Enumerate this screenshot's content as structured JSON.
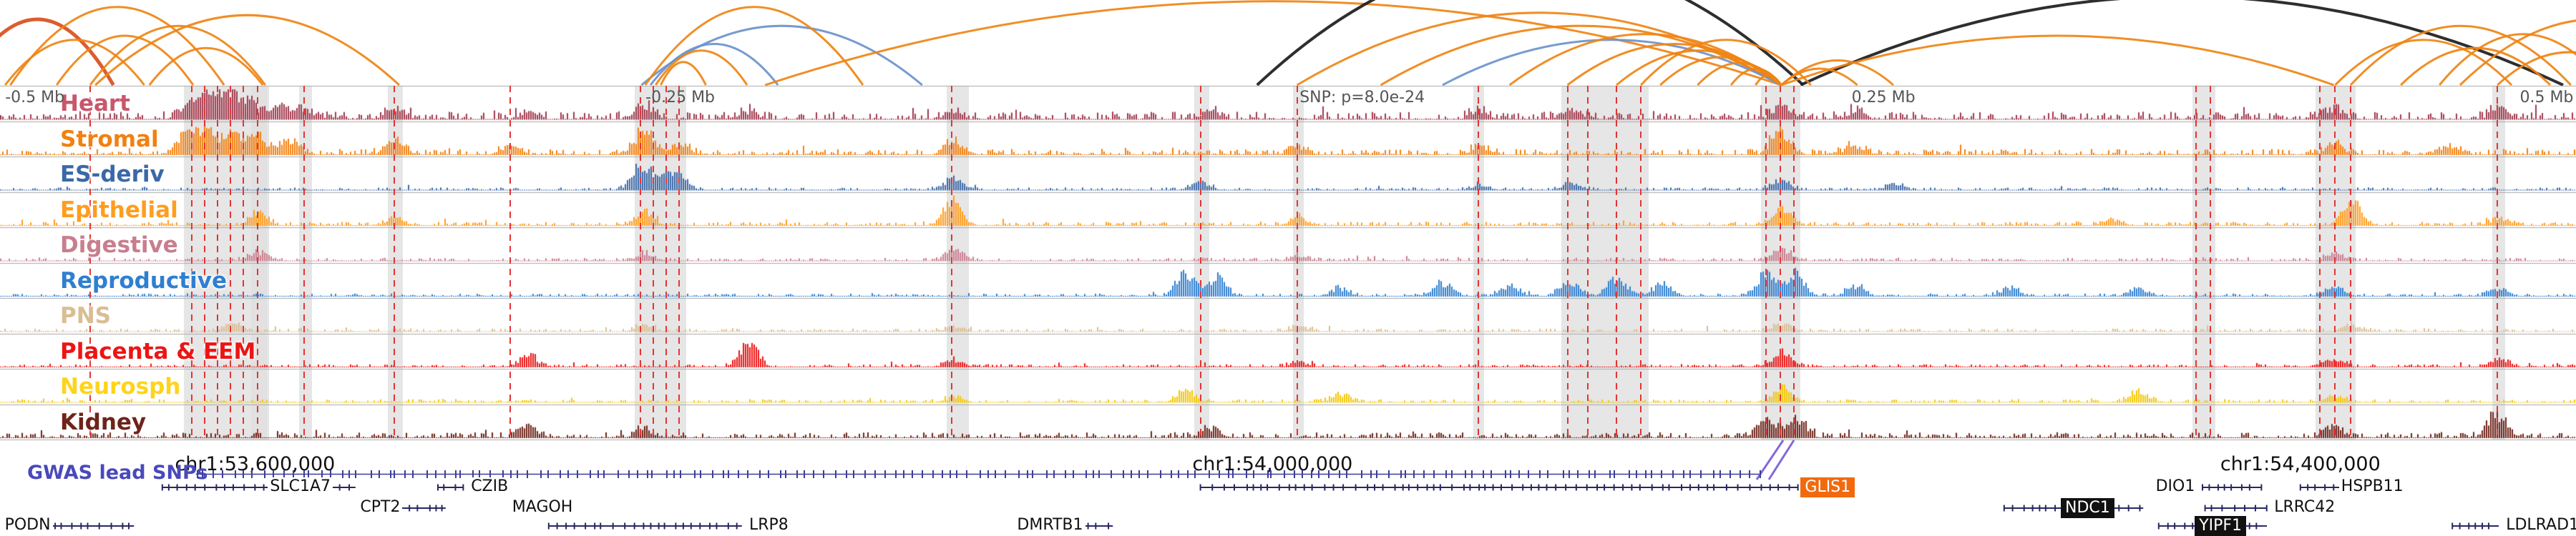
{
  "colors": {
    "background": "#ffffff",
    "grid_line": "#a9a9a9",
    "red_line": "#e23535",
    "highlight_band": "#e0e0e0",
    "scale_text": "#555555",
    "coord_text": "#111111",
    "gwas_label_color": "#4949bb",
    "snp_tick": "#3d3d99",
    "gene_line": "#28285f",
    "gene_highlight_orange": "#f26a0d",
    "gene_highlight_black": "#111111",
    "pointer": "#8468d8",
    "arc_palette": {
      "orange": "#ef8414",
      "blue": "#6b93cc",
      "black": "#1c1c1c",
      "red": "#d84f1e"
    }
  },
  "chart_data": {
    "type": "area",
    "x_axis": {
      "coordinate_ticks": [
        "chr1:53,600,000",
        "chr1:54,000,000",
        "chr1:54,400,000"
      ],
      "coordinate_tick_x": [
        0.099,
        0.494,
        0.893
      ],
      "scale_marks": [
        {
          "text": "-0.5 Mb",
          "x": 0.002,
          "align": "left"
        },
        {
          "text": "-0.25 Mb",
          "x": 0.2506,
          "align": "left"
        },
        {
          "text": "SNP: p=8.0e-24",
          "x": 0.5045,
          "align": "left"
        },
        {
          "text": "0.25 Mb",
          "x": 0.7188,
          "align": "left"
        },
        {
          "text": "0.5 Mb",
          "x": 0.999,
          "align": "right"
        }
      ]
    },
    "snp_annotation": "SNP: p=8.0e-24",
    "tracks": [
      {
        "label": "Heart",
        "label_color": "#c9566c",
        "signal_color": "#a03a4e",
        "noise": 0.26,
        "peaks": [
          [
            0.072,
            0.5
          ],
          [
            0.08,
            0.9
          ],
          [
            0.088,
            0.95
          ],
          [
            0.096,
            0.7
          ],
          [
            0.108,
            0.55
          ],
          [
            0.118,
            0.4
          ],
          [
            0.153,
            0.45
          ],
          [
            0.205,
            0.3
          ],
          [
            0.25,
            0.45
          ],
          [
            0.29,
            0.3
          ],
          [
            0.37,
            0.25
          ],
          [
            0.47,
            0.3
          ],
          [
            0.574,
            0.3
          ],
          [
            0.61,
            0.35
          ],
          [
            0.6915,
            0.5
          ],
          [
            0.72,
            0.3
          ],
          [
            0.906,
            0.35
          ],
          [
            0.97,
            0.45
          ]
        ]
      },
      {
        "label": "Stromal",
        "label_color": "#f28011",
        "signal_color": "#f28011",
        "noise": 0.2,
        "peaks": [
          [
            0.072,
            0.8
          ],
          [
            0.08,
            1.0
          ],
          [
            0.09,
            0.85
          ],
          [
            0.1,
            0.7
          ],
          [
            0.112,
            0.55
          ],
          [
            0.153,
            0.6
          ],
          [
            0.198,
            0.35
          ],
          [
            0.25,
            0.95
          ],
          [
            0.2635,
            0.4
          ],
          [
            0.37,
            0.55
          ],
          [
            0.504,
            0.3
          ],
          [
            0.574,
            0.3
          ],
          [
            0.6915,
            0.85
          ],
          [
            0.72,
            0.35
          ],
          [
            0.906,
            0.35
          ],
          [
            0.95,
            0.3
          ]
        ]
      },
      {
        "label": "ES-deriv",
        "label_color": "#3b68a8",
        "signal_color": "#3b68a8",
        "noise": 0.1,
        "peaks": [
          [
            0.2485,
            1.0
          ],
          [
            0.2585,
            0.55
          ],
          [
            0.2635,
            0.4
          ],
          [
            0.37,
            0.5
          ],
          [
            0.466,
            0.3
          ],
          [
            0.574,
            0.2
          ],
          [
            0.61,
            0.25
          ],
          [
            0.6915,
            0.4
          ],
          [
            0.735,
            0.25
          ]
        ]
      },
      {
        "label": "Epithelial",
        "label_color": "#ff9d1e",
        "signal_color": "#ff9d1e",
        "noise": 0.13,
        "peaks": [
          [
            0.1,
            0.45
          ],
          [
            0.153,
            0.3
          ],
          [
            0.25,
            0.55
          ],
          [
            0.3695,
            1.0
          ],
          [
            0.504,
            0.3
          ],
          [
            0.6915,
            0.65
          ],
          [
            0.82,
            0.25
          ],
          [
            0.9125,
            1.0
          ],
          [
            0.97,
            0.3
          ]
        ]
      },
      {
        "label": "Digestive",
        "label_color": "#c87e8e",
        "signal_color": "#c87e8e",
        "noise": 0.11,
        "peaks": [
          [
            0.1,
            0.35
          ],
          [
            0.25,
            0.3
          ],
          [
            0.37,
            0.45
          ],
          [
            0.504,
            0.2
          ],
          [
            0.6915,
            0.45
          ],
          [
            0.906,
            0.25
          ]
        ]
      },
      {
        "label": "Reproductive",
        "label_color": "#2f7fd0",
        "signal_color": "#2f7fd0",
        "noise": 0.1,
        "peaks": [
          [
            0.46,
            0.9
          ],
          [
            0.472,
            0.75
          ],
          [
            0.52,
            0.3
          ],
          [
            0.56,
            0.55
          ],
          [
            0.586,
            0.45
          ],
          [
            0.6085,
            0.6
          ],
          [
            0.6275,
            0.7
          ],
          [
            0.645,
            0.5
          ],
          [
            0.6855,
            0.95
          ],
          [
            0.6965,
            0.85
          ],
          [
            0.72,
            0.4
          ],
          [
            0.78,
            0.35
          ],
          [
            0.83,
            0.3
          ],
          [
            0.906,
            0.35
          ],
          [
            0.9695,
            0.3
          ]
        ]
      },
      {
        "label": "PNS",
        "label_color": "#d9bd93",
        "signal_color": "#d9bd93",
        "noise": 0.11,
        "peaks": [
          [
            0.09,
            0.35
          ],
          [
            0.25,
            0.25
          ],
          [
            0.37,
            0.2
          ],
          [
            0.504,
            0.2
          ],
          [
            0.6915,
            0.35
          ],
          [
            0.9125,
            0.25
          ]
        ]
      },
      {
        "label": "Placenta & EEM",
        "label_color": "#ec1515",
        "signal_color": "#ec1515",
        "noise": 0.1,
        "peaks": [
          [
            0.205,
            0.45
          ],
          [
            0.2905,
            0.95
          ],
          [
            0.37,
            0.25
          ],
          [
            0.504,
            0.2
          ],
          [
            0.6915,
            0.6
          ],
          [
            0.906,
            0.3
          ],
          [
            0.97,
            0.35
          ]
        ]
      },
      {
        "label": "Neurosph",
        "label_color": "#fed41c",
        "signal_color": "#f2c70a",
        "noise": 0.11,
        "peaks": [
          [
            0.37,
            0.2
          ],
          [
            0.46,
            0.45
          ],
          [
            0.52,
            0.35
          ],
          [
            0.6915,
            0.55
          ],
          [
            0.83,
            0.45
          ],
          [
            0.906,
            0.25
          ]
        ]
      },
      {
        "label": "Kidney",
        "label_color": "#6e241a",
        "signal_color": "#6e241a",
        "noise": 0.19,
        "peaks": [
          [
            0.205,
            0.45
          ],
          [
            0.25,
            0.3
          ],
          [
            0.47,
            0.35
          ],
          [
            0.6855,
            0.7
          ],
          [
            0.6965,
            0.85
          ],
          [
            0.906,
            0.4
          ],
          [
            0.9695,
            0.95
          ]
        ]
      }
    ],
    "arcs": [
      {
        "x1": -0.015,
        "x2": 0.044,
        "c": "red",
        "h": 0.8,
        "sw": 5
      },
      {
        "x1": 0.002,
        "x2": 0.056,
        "c": "orange",
        "h": 0.55
      },
      {
        "x1": 0.004,
        "x2": 0.087,
        "c": "orange",
        "h": 0.95
      },
      {
        "x1": 0.022,
        "x2": 0.075,
        "c": "orange",
        "h": 0.6
      },
      {
        "x1": 0.035,
        "x2": 0.103,
        "c": "orange",
        "h": 0.72
      },
      {
        "x1": 0.058,
        "x2": 0.102,
        "c": "orange",
        "h": 0.45
      },
      {
        "x1": 0.037,
        "x2": 0.155,
        "c": "orange",
        "h": 0.85
      },
      {
        "x1": 0.249,
        "x2": 0.358,
        "c": "blue",
        "h": 0.72
      },
      {
        "x1": 0.2505,
        "x2": 0.335,
        "c": "orange",
        "h": 0.95
      },
      {
        "x1": 0.2525,
        "x2": 0.302,
        "c": "blue",
        "h": 0.5
      },
      {
        "x1": 0.2545,
        "x2": 0.29,
        "c": "orange",
        "h": 0.42
      },
      {
        "x1": 0.2565,
        "x2": 0.274,
        "c": "orange",
        "h": 0.28
      },
      {
        "x1": 0.297,
        "x2": 0.6915,
        "c": "orange",
        "h": 1.02
      },
      {
        "x1": 0.488,
        "x2": 0.7,
        "c": "black",
        "h": 1.55,
        "sw": 4
      },
      {
        "x1": 0.699,
        "x2": 0.995,
        "c": "black",
        "h": 1.08,
        "sw": 4
      },
      {
        "x1": 0.5035,
        "x2": 0.6915,
        "c": "orange",
        "h": 0.88
      },
      {
        "x1": 0.536,
        "x2": 0.6915,
        "c": "orange",
        "h": 0.72
      },
      {
        "x1": 0.56,
        "x2": 0.6915,
        "c": "blue",
        "h": 0.55
      },
      {
        "x1": 0.586,
        "x2": 0.6915,
        "c": "orange",
        "h": 0.62
      },
      {
        "x1": 0.6085,
        "x2": 0.6915,
        "c": "orange",
        "h": 0.5
      },
      {
        "x1": 0.6275,
        "x2": 0.6915,
        "c": "orange",
        "h": 0.42
      },
      {
        "x1": 0.6445,
        "x2": 0.6915,
        "c": "orange",
        "h": 0.34
      },
      {
        "x1": 0.659,
        "x2": 0.6915,
        "c": "orange",
        "h": 0.27
      },
      {
        "x1": 0.672,
        "x2": 0.6915,
        "c": "orange",
        "h": 0.2
      },
      {
        "x1": 0.6815,
        "x2": 0.6915,
        "c": "orange",
        "h": 0.12
      },
      {
        "x1": 0.637,
        "x2": 0.703,
        "c": "orange",
        "h": 0.55
      },
      {
        "x1": 0.6915,
        "x2": 0.735,
        "c": "orange",
        "h": 0.3
      },
      {
        "x1": 0.6915,
        "x2": 0.721,
        "c": "orange",
        "h": 0.2
      },
      {
        "x1": 0.6915,
        "x2": 0.906,
        "c": "orange",
        "h": 0.6
      },
      {
        "x1": 0.9065,
        "x2": 0.975,
        "c": "orange",
        "h": 0.55
      },
      {
        "x1": 0.9125,
        "x2": 0.998,
        "c": "orange",
        "h": 0.72
      },
      {
        "x1": 0.932,
        "x2": 0.99,
        "c": "orange",
        "h": 0.45
      },
      {
        "x1": 0.947,
        "x2": 1.012,
        "c": "orange",
        "h": 0.62
      },
      {
        "x1": 0.9695,
        "x2": 1.025,
        "c": "orange",
        "h": 0.4
      },
      {
        "x1": 0.955,
        "x2": 1.06,
        "c": "orange",
        "h": 0.8
      }
    ],
    "red_lines": [
      0.035,
      0.0745,
      0.0795,
      0.0845,
      0.0895,
      0.0945,
      0.1,
      0.118,
      0.153,
      0.198,
      0.2485,
      0.2535,
      0.2585,
      0.2635,
      0.3695,
      0.466,
      0.5035,
      0.574,
      0.6085,
      0.6165,
      0.6275,
      0.637,
      0.6855,
      0.691,
      0.6965,
      0.8525,
      0.858,
      0.9005,
      0.9065,
      0.9125,
      0.9695
    ],
    "highlight_bands": [
      [
        0.0715,
        0.033
      ],
      [
        0.0975,
        0.006
      ],
      [
        0.116,
        0.005
      ],
      [
        0.1505,
        0.006
      ],
      [
        0.2465,
        0.02
      ],
      [
        0.3675,
        0.0085
      ],
      [
        0.4635,
        0.006
      ],
      [
        0.502,
        0.004
      ],
      [
        0.572,
        0.004
      ],
      [
        0.606,
        0.034
      ],
      [
        0.6835,
        0.0155
      ],
      [
        0.851,
        0.009
      ],
      [
        0.899,
        0.0155
      ],
      [
        0.9675,
        0.005
      ]
    ],
    "snp_track": {
      "label": "GWAS lead SNPs",
      "start": 0.076,
      "end": 0.683,
      "tick_count": 165
    },
    "genes": [
      {
        "label": "SLC1A7",
        "x1": 0.063,
        "x2": 0.138,
        "label_x": 0.104,
        "row": 0,
        "strand": "-",
        "style": "plain"
      },
      {
        "label": "CPT2",
        "x1": 0.152,
        "x2": 0.173,
        "label_x": 0.139,
        "row": 1,
        "strand": "+",
        "style": "plain"
      },
      {
        "label": "CZIB",
        "x1": 0.17,
        "x2": 0.18,
        "label_x": 0.182,
        "row": 0,
        "strand": "-",
        "style": "plain"
      },
      {
        "label": "MAGOH",
        "x1": 0.206,
        "x2": 0.222,
        "label_x": 0.198,
        "row": 1,
        "strand": "-",
        "style": "plain"
      },
      {
        "label": "LRP8",
        "x1": 0.213,
        "x2": 0.288,
        "label_x": 0.29,
        "row": 2,
        "strand": "-",
        "style": "plain"
      },
      {
        "label": "PODN",
        "x1": 0.018,
        "x2": 0.052,
        "label_x": 0.001,
        "row": 2,
        "strand": "+",
        "style": "plain"
      },
      {
        "label": "DMRTB1",
        "x1": 0.418,
        "x2": 0.432,
        "label_x": 0.394,
        "row": 2,
        "strand": "-",
        "style": "plain"
      },
      {
        "label": "GLIS1",
        "x1": 0.466,
        "x2": 0.698,
        "label_x": 0.699,
        "row": 0,
        "strand": "-",
        "style": "orange"
      },
      {
        "label": "NDC1",
        "x1": 0.778,
        "x2": 0.832,
        "label_x": 0.8,
        "row": 1,
        "strand": "+",
        "style": "black"
      },
      {
        "label": "YIPF1",
        "x1": 0.838,
        "x2": 0.88,
        "label_x": 0.852,
        "row": 2,
        "strand": "+",
        "style": "black"
      },
      {
        "label": "DIO1",
        "x1": 0.855,
        "x2": 0.878,
        "label_x": 0.836,
        "row": 0,
        "strand": "-",
        "style": "plain"
      },
      {
        "label": "LRRC42",
        "x1": 0.856,
        "x2": 0.88,
        "label_x": 0.882,
        "row": 1,
        "strand": "-",
        "style": "plain"
      },
      {
        "label": "HSPB11",
        "x1": 0.893,
        "x2": 0.928,
        "label_x": 0.908,
        "row": 0,
        "strand": "-",
        "style": "plain"
      },
      {
        "label": "LDLRAD1",
        "x1": 0.952,
        "x2": 0.97,
        "label_x": 0.972,
        "row": 2,
        "strand": "+",
        "style": "plain"
      }
    ]
  }
}
